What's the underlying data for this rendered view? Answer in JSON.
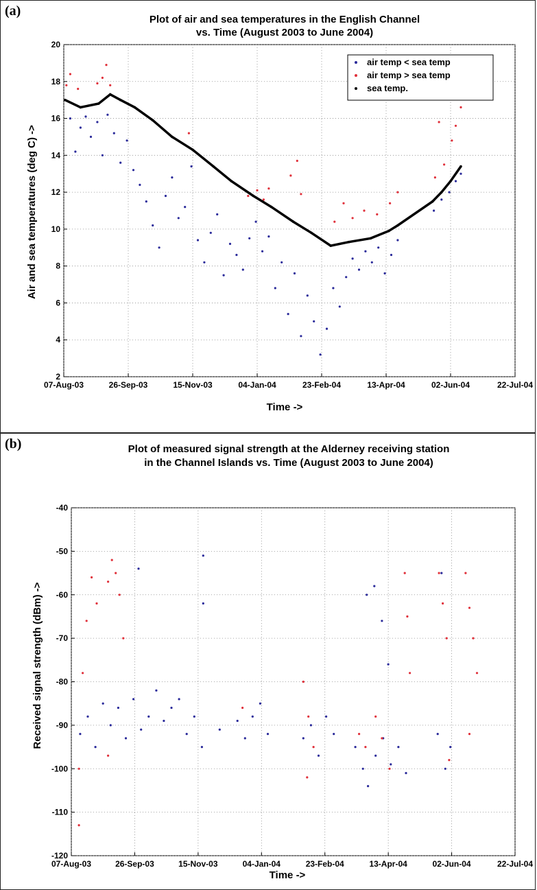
{
  "chart_data": [
    {
      "type": "scatter",
      "panel_label": "(a)",
      "title": "Plot of air and sea temperatures in the English Channel",
      "subtitle": "vs. Time (August 2003 to June 2004)",
      "xlabel": "Time ->",
      "ylabel": "Air and sea temperatures (deg C) ->",
      "x_type": "date",
      "xlim": [
        "2003-08-07",
        "2004-07-22"
      ],
      "xticks": [
        "2003-08-07",
        "2003-09-26",
        "2003-11-15",
        "2004-01-04",
        "2004-02-23",
        "2004-04-13",
        "2004-06-02",
        "2004-07-22"
      ],
      "xtick_labels": [
        "07-Aug-03",
        "26-Sep-03",
        "15-Nov-03",
        "04-Jan-04",
        "23-Feb-04",
        "13-Apr-04",
        "02-Jun-04",
        "22-Jul-04"
      ],
      "ylim": [
        2,
        20
      ],
      "yticks": [
        2,
        4,
        6,
        8,
        10,
        12,
        14,
        16,
        18,
        20
      ],
      "grid": true,
      "legend_position": "top-right",
      "series": [
        {
          "name": "air temp < sea temp",
          "color": "#2a2a9a",
          "points": [
            [
              "2003-08-12",
              16.0
            ],
            [
              "2003-08-16",
              14.2
            ],
            [
              "2003-08-20",
              15.5
            ],
            [
              "2003-08-24",
              16.1
            ],
            [
              "2003-08-28",
              15.0
            ],
            [
              "2003-09-02",
              15.8
            ],
            [
              "2003-09-06",
              14.0
            ],
            [
              "2003-09-10",
              16.2
            ],
            [
              "2003-09-15",
              15.2
            ],
            [
              "2003-09-20",
              13.6
            ],
            [
              "2003-09-25",
              14.8
            ],
            [
              "2003-09-30",
              13.2
            ],
            [
              "2003-10-05",
              12.4
            ],
            [
              "2003-10-10",
              11.5
            ],
            [
              "2003-10-15",
              10.2
            ],
            [
              "2003-10-20",
              9.0
            ],
            [
              "2003-10-25",
              11.8
            ],
            [
              "2003-10-30",
              12.8
            ],
            [
              "2003-11-04",
              10.6
            ],
            [
              "2003-11-09",
              11.2
            ],
            [
              "2003-11-14",
              13.4
            ],
            [
              "2003-11-19",
              9.4
            ],
            [
              "2003-11-24",
              8.2
            ],
            [
              "2003-11-29",
              9.8
            ],
            [
              "2003-12-04",
              10.8
            ],
            [
              "2003-12-09",
              7.5
            ],
            [
              "2003-12-14",
              9.2
            ],
            [
              "2003-12-19",
              8.6
            ],
            [
              "2003-12-24",
              7.8
            ],
            [
              "2003-12-29",
              9.5
            ],
            [
              "2004-01-03",
              10.4
            ],
            [
              "2004-01-08",
              8.8
            ],
            [
              "2004-01-13",
              9.6
            ],
            [
              "2004-01-18",
              6.8
            ],
            [
              "2004-01-23",
              8.2
            ],
            [
              "2004-01-28",
              5.4
            ],
            [
              "2004-02-02",
              7.6
            ],
            [
              "2004-02-07",
              4.2
            ],
            [
              "2004-02-12",
              6.4
            ],
            [
              "2004-02-17",
              5.0
            ],
            [
              "2004-02-22",
              3.2
            ],
            [
              "2004-02-27",
              4.6
            ],
            [
              "2004-03-03",
              6.8
            ],
            [
              "2004-03-08",
              5.8
            ],
            [
              "2004-03-13",
              7.4
            ],
            [
              "2004-03-18",
              8.4
            ],
            [
              "2004-03-23",
              7.8
            ],
            [
              "2004-03-28",
              8.8
            ],
            [
              "2004-04-02",
              8.2
            ],
            [
              "2004-04-07",
              9.0
            ],
            [
              "2004-04-12",
              7.6
            ],
            [
              "2004-04-17",
              8.6
            ],
            [
              "2004-04-22",
              9.4
            ],
            [
              "2004-05-20",
              11.0
            ],
            [
              "2004-05-26",
              11.6
            ],
            [
              "2004-06-01",
              12.0
            ],
            [
              "2004-06-06",
              12.6
            ],
            [
              "2004-06-10",
              13.0
            ]
          ]
        },
        {
          "name": "air temp > sea temp",
          "color": "#e0303a",
          "points": [
            [
              "2003-08-09",
              17.8
            ],
            [
              "2003-08-12",
              18.4
            ],
            [
              "2003-08-18",
              17.6
            ],
            [
              "2003-09-02",
              17.9
            ],
            [
              "2003-09-06",
              18.2
            ],
            [
              "2003-09-09",
              18.9
            ],
            [
              "2003-09-12",
              17.8
            ],
            [
              "2003-11-12",
              15.2
            ],
            [
              "2003-12-28",
              11.8
            ],
            [
              "2004-01-04",
              12.1
            ],
            [
              "2004-01-09",
              11.6
            ],
            [
              "2004-01-13",
              12.2
            ],
            [
              "2004-01-30",
              12.9
            ],
            [
              "2004-02-04",
              13.7
            ],
            [
              "2004-02-07",
              11.9
            ],
            [
              "2004-03-04",
              10.4
            ],
            [
              "2004-03-11",
              11.4
            ],
            [
              "2004-03-18",
              10.6
            ],
            [
              "2004-03-27",
              11.0
            ],
            [
              "2004-04-06",
              10.8
            ],
            [
              "2004-04-16",
              11.4
            ],
            [
              "2004-04-22",
              12.0
            ],
            [
              "2004-05-21",
              12.8
            ],
            [
              "2004-05-24",
              15.8
            ],
            [
              "2004-05-28",
              13.5
            ],
            [
              "2004-06-03",
              14.8
            ],
            [
              "2004-06-06",
              15.6
            ],
            [
              "2004-06-10",
              16.6
            ]
          ]
        },
        {
          "name": "sea temp.",
          "color": "#000000",
          "line": true,
          "points": [
            [
              "2003-08-08",
              17.0
            ],
            [
              "2003-08-20",
              16.6
            ],
            [
              "2003-09-03",
              16.8
            ],
            [
              "2003-09-12",
              17.3
            ],
            [
              "2003-09-20",
              17.0
            ],
            [
              "2003-10-01",
              16.6
            ],
            [
              "2003-10-15",
              15.9
            ],
            [
              "2003-10-30",
              15.0
            ],
            [
              "2003-11-15",
              14.3
            ],
            [
              "2003-12-01",
              13.4
            ],
            [
              "2003-12-15",
              12.6
            ],
            [
              "2004-01-01",
              11.8
            ],
            [
              "2004-01-15",
              11.2
            ],
            [
              "2004-02-01",
              10.4
            ],
            [
              "2004-02-15",
              9.8
            ],
            [
              "2004-03-01",
              9.1
            ],
            [
              "2004-03-15",
              9.3
            ],
            [
              "2004-04-01",
              9.5
            ],
            [
              "2004-04-15",
              9.9
            ],
            [
              "2004-04-22",
              10.2
            ],
            [
              "2004-05-19",
              11.5
            ],
            [
              "2004-05-26",
              12.0
            ],
            [
              "2004-06-02",
              12.6
            ],
            [
              "2004-06-10",
              13.4
            ]
          ]
        }
      ]
    },
    {
      "type": "scatter",
      "panel_label": "(b)",
      "title": "Plot of measured signal strength at the Alderney receiving station",
      "subtitle": "in the Channel Islands vs. Time (August 2003 to June 2004)",
      "xlabel": "Time ->",
      "ylabel": "Received signal strength (dBm) ->",
      "x_type": "date",
      "xlim": [
        "2003-08-07",
        "2004-07-22"
      ],
      "xticks": [
        "2003-08-07",
        "2003-09-26",
        "2003-11-15",
        "2004-01-04",
        "2004-02-23",
        "2004-04-13",
        "2004-06-02",
        "2004-07-22"
      ],
      "xtick_labels": [
        "07-Aug-03",
        "26-Sep-03",
        "15-Nov-03",
        "04-Jan-04",
        "23-Feb-04",
        "13-Apr-04",
        "02-Jun-04",
        "22-Jul-04"
      ],
      "ylim": [
        -120,
        -40
      ],
      "yticks": [
        -120,
        -110,
        -100,
        -90,
        -80,
        -70,
        -60,
        -50,
        -40
      ],
      "grid": true,
      "series": [
        {
          "color": "#2a2a9a",
          "points": [
            [
              "2003-08-14",
              -92
            ],
            [
              "2003-08-20",
              -88
            ],
            [
              "2003-08-26",
              -95
            ],
            [
              "2003-09-01",
              -85
            ],
            [
              "2003-09-07",
              -90
            ],
            [
              "2003-09-13",
              -86
            ],
            [
              "2003-09-19",
              -93
            ],
            [
              "2003-09-25",
              -84
            ],
            [
              "2003-10-01",
              -91
            ],
            [
              "2003-10-07",
              -88
            ],
            [
              "2003-10-13",
              -82
            ],
            [
              "2003-10-19",
              -89
            ],
            [
              "2003-10-25",
              -86
            ],
            [
              "2003-10-31",
              -84
            ],
            [
              "2003-11-06",
              -92
            ],
            [
              "2003-11-12",
              -88
            ],
            [
              "2003-11-18",
              -95
            ],
            [
              "2003-12-02",
              -91
            ],
            [
              "2003-12-16",
              -89
            ],
            [
              "2003-12-22",
              -93
            ],
            [
              "2003-12-28",
              -88
            ],
            [
              "2004-01-03",
              -85
            ],
            [
              "2004-01-09",
              -92
            ],
            [
              "2004-02-06",
              -93
            ],
            [
              "2004-02-12",
              -90
            ],
            [
              "2004-02-18",
              -97
            ],
            [
              "2004-02-24",
              -88
            ],
            [
              "2004-03-01",
              -92
            ],
            [
              "2004-03-18",
              -95
            ],
            [
              "2004-03-24",
              -100
            ],
            [
              "2004-03-28",
              -104
            ],
            [
              "2004-04-03",
              -97
            ],
            [
              "2004-04-09",
              -93
            ],
            [
              "2004-04-15",
              -99
            ],
            [
              "2004-04-21",
              -95
            ],
            [
              "2004-04-27",
              -101
            ],
            [
              "2004-05-22",
              -92
            ],
            [
              "2004-05-28",
              -100
            ],
            [
              "2004-06-01",
              -95
            ],
            [
              "2003-09-29",
              -54
            ],
            [
              "2003-11-19",
              -51
            ],
            [
              "2003-11-19",
              -62
            ],
            [
              "2004-03-27",
              -60
            ],
            [
              "2004-04-02",
              -58
            ],
            [
              "2004-04-08",
              -66
            ],
            [
              "2004-04-13",
              -76
            ],
            [
              "2004-05-25",
              -55
            ]
          ]
        },
        {
          "color": "#e0303a",
          "points": [
            [
              "2003-08-13",
              -100
            ],
            [
              "2003-08-13",
              -113
            ],
            [
              "2003-08-16",
              -78
            ],
            [
              "2003-08-19",
              -66
            ],
            [
              "2003-08-23",
              -56
            ],
            [
              "2003-08-27",
              -62
            ],
            [
              "2003-09-05",
              -57
            ],
            [
              "2003-09-08",
              -52
            ],
            [
              "2003-09-11",
              -55
            ],
            [
              "2003-09-14",
              -60
            ],
            [
              "2003-09-17",
              -70
            ],
            [
              "2003-09-05",
              -97
            ],
            [
              "2003-12-20",
              -86
            ],
            [
              "2004-02-06",
              -80
            ],
            [
              "2004-02-10",
              -88
            ],
            [
              "2004-02-14",
              -95
            ],
            [
              "2004-02-09",
              -102
            ],
            [
              "2004-03-21",
              -92
            ],
            [
              "2004-03-26",
              -95
            ],
            [
              "2004-04-03",
              -88
            ],
            [
              "2004-04-08",
              -93
            ],
            [
              "2004-04-14",
              -100
            ],
            [
              "2004-04-26",
              -55
            ],
            [
              "2004-04-28",
              -65
            ],
            [
              "2004-04-30",
              -78
            ],
            [
              "2004-05-23",
              -55
            ],
            [
              "2004-05-26",
              -62
            ],
            [
              "2004-05-29",
              -70
            ],
            [
              "2004-05-31",
              -98
            ],
            [
              "2004-06-13",
              -55
            ],
            [
              "2004-06-16",
              -63
            ],
            [
              "2004-06-19",
              -70
            ],
            [
              "2004-06-22",
              -78
            ],
            [
              "2004-06-16",
              -92
            ]
          ]
        }
      ]
    }
  ]
}
